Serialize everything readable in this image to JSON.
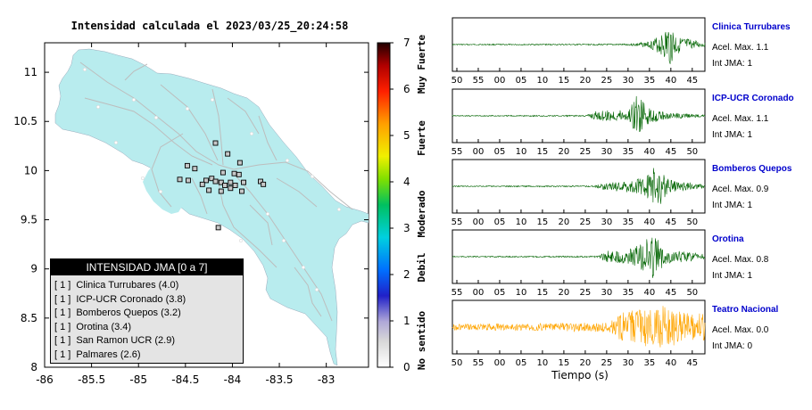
{
  "map": {
    "title": "Intensidad calculada el 2023/03/25_20:24:58",
    "lon_ticks": [
      "-86",
      "-85.5",
      "-85",
      "-84.5",
      "-84",
      "-83.5",
      "-83"
    ],
    "lat_ticks": [
      "11",
      "10.5",
      "10",
      "9.5",
      "9",
      "8.5",
      "8"
    ],
    "land_color": "#b8ecee",
    "legend": {
      "title": "INTENSIDAD JMA [0 a 7]",
      "items": [
        {
          "mark": "[ 1 ]",
          "label": "Clinica Turrubares (4.0)"
        },
        {
          "mark": "[ 1 ]",
          "label": "ICP-UCR Coronado (3.8)"
        },
        {
          "mark": "[ 1 ]",
          "label": "Bomberos Quepos (3.2)"
        },
        {
          "mark": "[ 1 ]",
          "label": "Orotina (3.4)"
        },
        {
          "mark": "[ 1 ]",
          "label": "San Ramon UCR (2.9)"
        },
        {
          "mark": "[ 1 ]",
          "label": "Palmares (2.6)"
        }
      ]
    }
  },
  "colorbar": {
    "ticks": [
      "7",
      "6",
      "5",
      "4",
      "3",
      "2",
      "1",
      "0"
    ],
    "bands": [
      "Muy Fuerte",
      "Fuerte",
      "Moderado",
      "Debil",
      "No sentido"
    ]
  },
  "waveforms": {
    "xlabel": "Tiempo (s)",
    "panels": [
      {
        "name": "Clinica Turrubares",
        "acel": "Acel. Max. 1.1",
        "jma": "Int JMA: 1",
        "color": "#006400",
        "ticks": [
          "50",
          "55",
          "00",
          "05",
          "10",
          "15",
          "20",
          "25",
          "30",
          "35",
          "40",
          "45"
        ]
      },
      {
        "name": "ICP-UCR Coronado",
        "acel": "Acel. Max. 1.1",
        "jma": "Int JMA: 1",
        "color": "#006400",
        "ticks": [
          "55",
          "00",
          "05",
          "10",
          "15",
          "20",
          "25",
          "30",
          "35",
          "40",
          "45",
          "50"
        ]
      },
      {
        "name": "Bomberos Quepos",
        "acel": "Acel. Max. 0.9",
        "jma": "Int JMA: 1",
        "color": "#006400",
        "ticks": [
          "55",
          "00",
          "05",
          "10",
          "15",
          "20",
          "25",
          "30",
          "35",
          "40",
          "45",
          "50"
        ]
      },
      {
        "name": "Orotina",
        "acel": "Acel. Max. 0.8",
        "jma": "Int JMA: 1",
        "color": "#006400",
        "ticks": [
          "55",
          "00",
          "05",
          "10",
          "15",
          "20",
          "25",
          "30",
          "35",
          "40",
          "45",
          "50"
        ]
      },
      {
        "name": "Teatro Nacional",
        "acel": "Acel. Max. 0.0",
        "jma": "Int JMA: 0",
        "color": "#ffa500",
        "ticks": [
          "50",
          "55",
          "00",
          "05",
          "10",
          "15",
          "20",
          "25",
          "30",
          "35",
          "40",
          "45"
        ]
      }
    ]
  },
  "chart_data": [
    {
      "type": "scatter",
      "title": "Intensidad calculada el 2023/03/25_20:24:58",
      "xlabel": "",
      "ylabel": "",
      "xlim": [
        -86,
        -82.55
      ],
      "ylim": [
        8,
        11.3
      ],
      "colorbar_range": [
        0,
        7
      ],
      "stations": [
        {
          "x": -84.18,
          "y": 10.28
        },
        {
          "x": -84.05,
          "y": 10.17
        },
        {
          "x": -83.92,
          "y": 10.08
        },
        {
          "x": -84.48,
          "y": 10.05
        },
        {
          "x": -84.4,
          "y": 10.02
        },
        {
          "x": -84.1,
          "y": 9.98
        },
        {
          "x": -83.98,
          "y": 9.97
        },
        {
          "x": -83.93,
          "y": 9.96
        },
        {
          "x": -84.22,
          "y": 9.92
        },
        {
          "x": -84.56,
          "y": 9.91
        },
        {
          "x": -84.47,
          "y": 9.9
        },
        {
          "x": -84.28,
          "y": 9.9
        },
        {
          "x": -84.18,
          "y": 9.89
        },
        {
          "x": -84.12,
          "y": 9.88
        },
        {
          "x": -84.02,
          "y": 9.88
        },
        {
          "x": -83.88,
          "y": 9.88
        },
        {
          "x": -83.7,
          "y": 9.89
        },
        {
          "x": -83.67,
          "y": 9.86
        },
        {
          "x": -84.32,
          "y": 9.86
        },
        {
          "x": -84.08,
          "y": 9.85
        },
        {
          "x": -83.97,
          "y": 9.85
        },
        {
          "x": -84.02,
          "y": 9.82
        },
        {
          "x": -84.25,
          "y": 9.8
        },
        {
          "x": -84.12,
          "y": 9.79
        },
        {
          "x": -83.9,
          "y": 9.79
        },
        {
          "x": -84.15,
          "y": 9.42
        }
      ]
    },
    {
      "type": "line",
      "title": "",
      "xlabel": "Tiempo (s)",
      "ylabel": "",
      "series": [
        {
          "name": "Clinica Turrubares",
          "max_accel": 1.1,
          "jma": 1
        },
        {
          "name": "ICP-UCR Coronado",
          "max_accel": 1.1,
          "jma": 1
        },
        {
          "name": "Bomberos Quepos",
          "max_accel": 0.9,
          "jma": 1
        },
        {
          "name": "Orotina",
          "max_accel": 0.8,
          "jma": 1
        },
        {
          "name": "Teatro Nacional",
          "max_accel": 0.0,
          "jma": 0
        }
      ]
    }
  ]
}
